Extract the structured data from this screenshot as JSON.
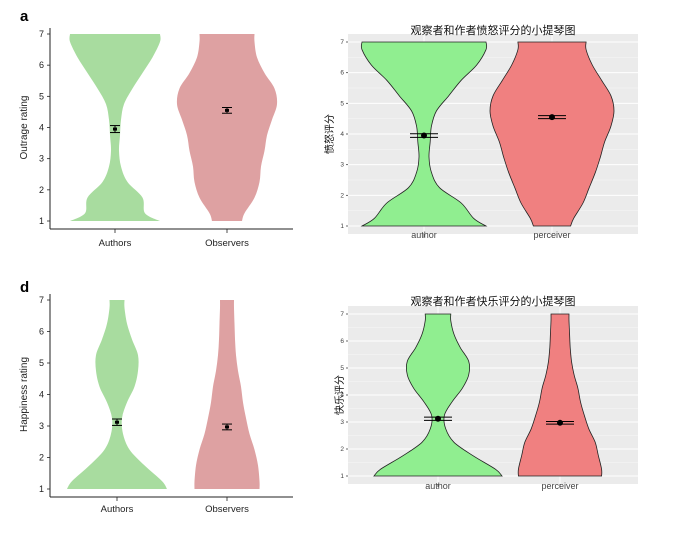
{
  "figure": {
    "panel_letters": [
      "a",
      "d"
    ]
  },
  "colors": {
    "green_left": "#a8dc9f",
    "red_left": "#dea1a2",
    "green_right": "#90ee90",
    "red_right": "#f08080",
    "panel_bg": "#ebebeb"
  },
  "chart_data": [
    {
      "id": "a",
      "type": "violin",
      "style": "nature",
      "title": "",
      "xlabel": "",
      "ylabel": "Outrage rating",
      "ylim": [
        1,
        7
      ],
      "yticks": [
        1,
        2,
        3,
        4,
        5,
        6,
        7
      ],
      "categories": [
        "Authors",
        "Observers"
      ],
      "means": [
        3.95,
        4.55
      ],
      "error": [
        0.08,
        0.06
      ],
      "colors": [
        "#a8dc9f",
        "#dea1a2"
      ],
      "density_y": [
        1.0,
        1.25,
        1.75,
        2.25,
        2.75,
        3.25,
        3.75,
        4.25,
        4.75,
        5.25,
        5.75,
        6.25,
        6.75,
        7.0
      ],
      "density_half_width": [
        [
          0.9,
          0.6,
          0.55,
          0.25,
          0.12,
          0.08,
          0.1,
          0.12,
          0.18,
          0.35,
          0.55,
          0.75,
          0.9,
          0.9
        ],
        [
          0.3,
          0.35,
          0.55,
          0.65,
          0.68,
          0.75,
          0.8,
          0.9,
          1.0,
          0.95,
          0.75,
          0.6,
          0.55,
          0.55
        ]
      ]
    },
    {
      "id": "b",
      "type": "violin",
      "style": "ggplot",
      "title": "观察者和作者愤怒评分的小提琴图",
      "xlabel": "",
      "ylabel": "愤怒评分",
      "ylim": [
        1,
        7
      ],
      "yticks": [
        1,
        2,
        3,
        4,
        5,
        6,
        7
      ],
      "categories": [
        "author",
        "perceiver"
      ],
      "means": [
        3.95,
        4.55
      ],
      "error": [
        0.06,
        0.05
      ],
      "colors": [
        "#90ee90",
        "#f08080"
      ],
      "density_y": [
        1.0,
        1.25,
        1.75,
        2.25,
        2.75,
        3.25,
        3.75,
        4.25,
        4.75,
        5.25,
        5.75,
        6.25,
        6.75,
        7.0
      ],
      "density_half_width": [
        [
          1.0,
          0.8,
          0.6,
          0.25,
          0.12,
          0.08,
          0.1,
          0.12,
          0.2,
          0.4,
          0.6,
          0.85,
          1.0,
          1.0
        ],
        [
          0.3,
          0.35,
          0.5,
          0.6,
          0.7,
          0.78,
          0.85,
          0.95,
          1.0,
          0.95,
          0.8,
          0.65,
          0.55,
          0.55
        ]
      ]
    },
    {
      "id": "d",
      "type": "violin",
      "style": "nature",
      "title": "",
      "xlabel": "",
      "ylabel": "Happiness rating",
      "ylim": [
        1,
        7
      ],
      "yticks": [
        1,
        2,
        3,
        4,
        5,
        6,
        7
      ],
      "categories": [
        "Authors",
        "Observers"
      ],
      "means": [
        3.12,
        2.97
      ],
      "error": [
        0.07,
        0.06
      ],
      "colors": [
        "#a8dc9f",
        "#dea1a2"
      ],
      "density_y": [
        1.0,
        1.25,
        1.75,
        2.25,
        2.75,
        3.25,
        3.75,
        4.25,
        4.75,
        5.25,
        5.75,
        6.25,
        6.75,
        7.0
      ],
      "density_half_width": [
        [
          1.0,
          0.9,
          0.55,
          0.25,
          0.12,
          0.1,
          0.2,
          0.35,
          0.42,
          0.42,
          0.3,
          0.2,
          0.15,
          0.15
        ],
        [
          0.65,
          0.65,
          0.62,
          0.55,
          0.45,
          0.38,
          0.32,
          0.28,
          0.22,
          0.18,
          0.16,
          0.15,
          0.14,
          0.14
        ]
      ]
    },
    {
      "id": "e",
      "type": "violin",
      "style": "ggplot",
      "title": "观察者和作者快乐评分的小提琴图",
      "xlabel": "",
      "ylabel": "快乐评分",
      "ylim": [
        1,
        7
      ],
      "yticks": [
        1,
        2,
        3,
        4,
        5,
        6,
        7
      ],
      "categories": [
        "author",
        "perceiver"
      ],
      "means": [
        3.12,
        2.97
      ],
      "error": [
        0.06,
        0.05
      ],
      "colors": [
        "#90ee90",
        "#f08080"
      ],
      "density_y": [
        1.0,
        1.25,
        1.75,
        2.25,
        2.75,
        3.25,
        3.75,
        4.25,
        4.75,
        5.25,
        5.75,
        6.25,
        6.75,
        7.0
      ],
      "density_half_width": [
        [
          1.0,
          0.9,
          0.55,
          0.25,
          0.12,
          0.1,
          0.22,
          0.38,
          0.48,
          0.48,
          0.35,
          0.25,
          0.2,
          0.2
        ],
        [
          0.65,
          0.65,
          0.6,
          0.55,
          0.45,
          0.38,
          0.32,
          0.28,
          0.22,
          0.18,
          0.16,
          0.15,
          0.14,
          0.14
        ]
      ]
    }
  ]
}
